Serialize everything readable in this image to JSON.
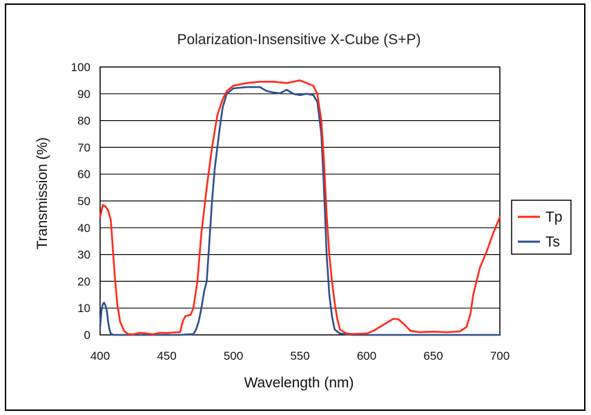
{
  "chart_data": {
    "type": "line",
    "title": "Polarization-Insensitive  X-Cube (S+P)",
    "xlabel": "Wavelength (nm)",
    "ylabel": "Transmission (%)",
    "xlim": [
      400,
      700
    ],
    "ylim": [
      0,
      100
    ],
    "x_ticks": [
      400,
      450,
      500,
      550,
      600,
      650,
      700
    ],
    "y_ticks": [
      0,
      10,
      20,
      30,
      40,
      50,
      60,
      70,
      80,
      90,
      100
    ],
    "grid": "horizontal",
    "legend_position": "right",
    "series": [
      {
        "name": "Tp",
        "color": "#ff2a1a",
        "points": [
          [
            400,
            44
          ],
          [
            402,
            48.5
          ],
          [
            404,
            48
          ],
          [
            406,
            46.5
          ],
          [
            408,
            43
          ],
          [
            409,
            36
          ],
          [
            411,
            22
          ],
          [
            413,
            11
          ],
          [
            415,
            5
          ],
          [
            418,
            1.5
          ],
          [
            421,
            0.3
          ],
          [
            425,
            0.2
          ],
          [
            430,
            0.8
          ],
          [
            435,
            0.5
          ],
          [
            440,
            0.2
          ],
          [
            445,
            0.8
          ],
          [
            450,
            0.7
          ],
          [
            455,
            0.9
          ],
          [
            460,
            1
          ],
          [
            462,
            5
          ],
          [
            464,
            7
          ],
          [
            468,
            7.5
          ],
          [
            470,
            10
          ],
          [
            473,
            20
          ],
          [
            476,
            38
          ],
          [
            480,
            55
          ],
          [
            484,
            70
          ],
          [
            488,
            82
          ],
          [
            492,
            88
          ],
          [
            495,
            91
          ],
          [
            500,
            93
          ],
          [
            510,
            94
          ],
          [
            520,
            94.5
          ],
          [
            530,
            94.5
          ],
          [
            540,
            94
          ],
          [
            550,
            95
          ],
          [
            555,
            94
          ],
          [
            560,
            93
          ],
          [
            563,
            90
          ],
          [
            566,
            80
          ],
          [
            568,
            65
          ],
          [
            570,
            45
          ],
          [
            572,
            30
          ],
          [
            574,
            20
          ],
          [
            576,
            12
          ],
          [
            578,
            6
          ],
          [
            580,
            2
          ],
          [
            585,
            0.5
          ],
          [
            590,
            0.3
          ],
          [
            600,
            0.5
          ],
          [
            605,
            1.5
          ],
          [
            610,
            3
          ],
          [
            615,
            4.5
          ],
          [
            620,
            6
          ],
          [
            624,
            5.8
          ],
          [
            628,
            4
          ],
          [
            633,
            1.5
          ],
          [
            640,
            1
          ],
          [
            650,
            1.2
          ],
          [
            660,
            1
          ],
          [
            670,
            1.3
          ],
          [
            675,
            3
          ],
          [
            678,
            8
          ],
          [
            680,
            15
          ],
          [
            685,
            25
          ],
          [
            690,
            31
          ],
          [
            695,
            38
          ],
          [
            700,
            44
          ]
        ]
      },
      {
        "name": "Ts",
        "color": "#2f4f8c",
        "points": [
          [
            400,
            3
          ],
          [
            401,
            9
          ],
          [
            402,
            11.5
          ],
          [
            403,
            12
          ],
          [
            404,
            11
          ],
          [
            405,
            9
          ],
          [
            406,
            5
          ],
          [
            407,
            2
          ],
          [
            408,
            0.5
          ],
          [
            410,
            0
          ],
          [
            420,
            0
          ],
          [
            440,
            0
          ],
          [
            460,
            0
          ],
          [
            470,
            0.3
          ],
          [
            472,
            2
          ],
          [
            474,
            5
          ],
          [
            476,
            10
          ],
          [
            478,
            16
          ],
          [
            480,
            20
          ],
          [
            482,
            35
          ],
          [
            484,
            50
          ],
          [
            486,
            62
          ],
          [
            488,
            70
          ],
          [
            490,
            78
          ],
          [
            492,
            85
          ],
          [
            495,
            90
          ],
          [
            500,
            92
          ],
          [
            510,
            92.5
          ],
          [
            520,
            92.5
          ],
          [
            525,
            91
          ],
          [
            530,
            90.5
          ],
          [
            535,
            90.2
          ],
          [
            540,
            91.5
          ],
          [
            545,
            90
          ],
          [
            550,
            89.5
          ],
          [
            555,
            90
          ],
          [
            560,
            89.5
          ],
          [
            563,
            87
          ],
          [
            566,
            75
          ],
          [
            568,
            55
          ],
          [
            570,
            30
          ],
          [
            572,
            15
          ],
          [
            574,
            7
          ],
          [
            576,
            2
          ],
          [
            580,
            0.5
          ],
          [
            590,
            0
          ],
          [
            600,
            0
          ],
          [
            650,
            0
          ],
          [
            700,
            0
          ]
        ]
      }
    ]
  }
}
